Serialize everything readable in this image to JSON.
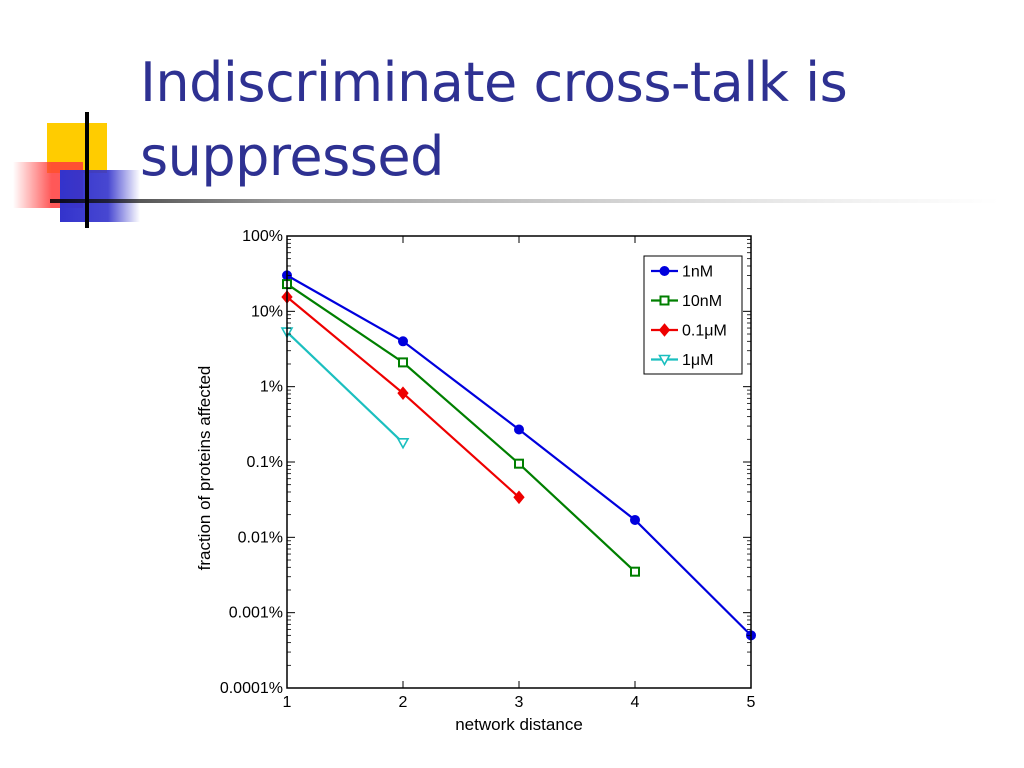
{
  "slide": {
    "title": "Indiscriminate cross-talk is suppressed"
  },
  "colors": {
    "title": "#2e3192",
    "deco_yellow": "#ffcc00",
    "deco_red": "#ff3b3b",
    "deco_blue": "#3333cc"
  },
  "chart_data": {
    "type": "line",
    "xlabel": "network distance",
    "ylabel": "fraction of proteins affected",
    "yscale": "log",
    "xlim": [
      1,
      5
    ],
    "ylim": [
      0.0001,
      100
    ],
    "x_ticks": [
      1,
      2,
      3,
      4,
      5
    ],
    "y_ticks": [
      {
        "value": 100,
        "label": "100%"
      },
      {
        "value": 10,
        "label": "10%"
      },
      {
        "value": 1,
        "label": "1%"
      },
      {
        "value": 0.1,
        "label": "0.1%"
      },
      {
        "value": 0.01,
        "label": "0.01%"
      },
      {
        "value": 0.001,
        "label": "0.001%"
      },
      {
        "value": 0.0001,
        "label": "0.0001%"
      }
    ],
    "grid": false,
    "legend_position": "top-right",
    "series": [
      {
        "name": "1nM",
        "color": "#0000dd",
        "marker": "circle",
        "x": [
          1,
          2,
          3,
          4,
          5
        ],
        "y": [
          30,
          4,
          0.27,
          0.017,
          0.0005
        ]
      },
      {
        "name": "10nM",
        "color": "#007f00",
        "marker": "square",
        "x": [
          1,
          2,
          3,
          4
        ],
        "y": [
          23,
          2.1,
          0.095,
          0.0035
        ]
      },
      {
        "name": "0.1μM",
        "color": "#ee0000",
        "marker": "diamond",
        "x": [
          1,
          2,
          3
        ],
        "y": [
          15.5,
          0.82,
          0.034
        ]
      },
      {
        "name": "1μM",
        "color": "#1bbfbf",
        "marker": "triangle-down",
        "x": [
          1,
          2
        ],
        "y": [
          5.3,
          0.18
        ]
      }
    ]
  }
}
